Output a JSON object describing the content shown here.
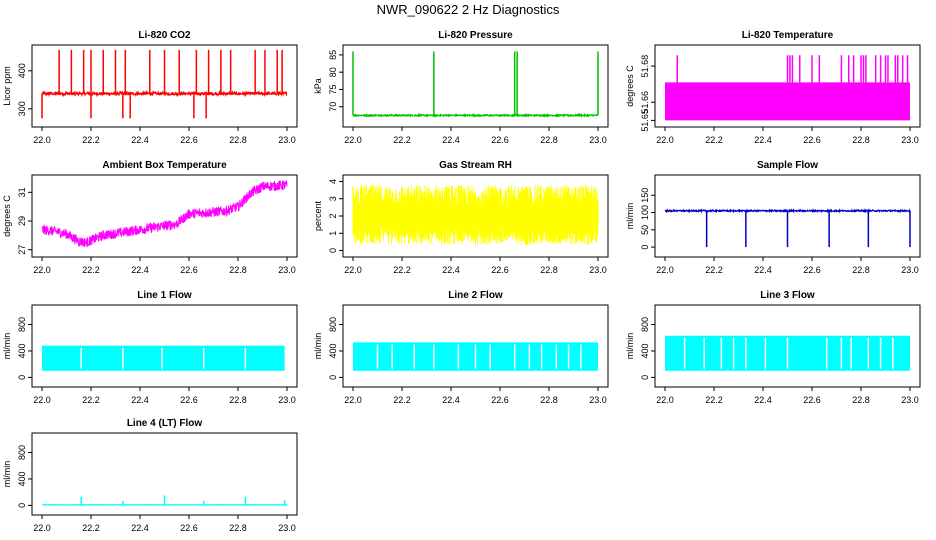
{
  "title": "NWR_090622  2 Hz Diagnostics",
  "chart_data": [
    {
      "type": "line",
      "title": "Li-820 CO2",
      "ylabel": "Licor ppm",
      "color": "#ff0000",
      "xlim": [
        22.0,
        23.0
      ],
      "ylim": [
        260,
        460
      ],
      "yticks": [
        300,
        400
      ],
      "xticks": [
        22.0,
        22.2,
        22.4,
        22.6,
        22.8,
        23.0
      ],
      "baseline": 340,
      "noise": 4,
      "spikes_up": [
        22.07,
        22.12,
        22.17,
        22.2,
        22.25,
        22.3,
        22.34,
        22.44,
        22.5,
        22.56,
        22.63,
        22.68,
        22.73,
        22.77,
        22.87,
        22.91,
        22.96,
        22.98
      ],
      "spike_up_value": 455,
      "spikes_down": [
        22.0,
        22.2,
        22.33,
        22.36,
        22.62,
        22.67
      ],
      "spike_down_value": 275
    },
    {
      "type": "line",
      "title": "Li-820 Pressure",
      "ylabel": "kPa",
      "color": "#00c000",
      "xlim": [
        22.0,
        23.0
      ],
      "ylim": [
        65,
        87
      ],
      "yticks": [
        70,
        75,
        80,
        85
      ],
      "xticks": [
        22.0,
        22.2,
        22.4,
        22.6,
        22.8,
        23.0
      ],
      "baseline": 67.5,
      "noise": 0.2,
      "spikes_up": [
        22.0,
        22.33,
        22.66,
        22.67,
        23.0
      ],
      "spike_up_value": 86,
      "spikes_down": [],
      "spike_down_value": 67
    },
    {
      "type": "area",
      "title": "Li-820 Temperature",
      "ylabel": "degrees C",
      "color": "#ff00ff",
      "xlim": [
        22.0,
        23.0
      ],
      "ylim": [
        51.648,
        51.69
      ],
      "yticks": [
        51.65,
        51.66,
        51.68
      ],
      "ytick_labels": [
        "51.65",
        "51.66",
        "51.68"
      ],
      "xticks": [
        22.0,
        22.2,
        22.4,
        22.6,
        22.8,
        23.0
      ],
      "band": [
        51.65,
        51.671
      ],
      "spikes_up": [
        22.05,
        22.5,
        22.51,
        22.52,
        22.55,
        22.6,
        22.63,
        22.72,
        22.75,
        22.77,
        22.8,
        22.81,
        22.82,
        22.86,
        22.88,
        22.9,
        22.91,
        22.94,
        22.95,
        22.97,
        22.99
      ],
      "spike_up_value": 51.686
    },
    {
      "type": "line",
      "title": "Ambient Box Temperature",
      "ylabel": "degrees C",
      "color": "#ff00ff",
      "xlim": [
        22.0,
        23.0
      ],
      "ylim": [
        26.7,
        32.0
      ],
      "yticks": [
        27,
        29,
        31
      ],
      "xticks": [
        22.0,
        22.2,
        22.4,
        22.6,
        22.8,
        23.0
      ],
      "trend": [
        [
          22.0,
          28.4
        ],
        [
          22.05,
          28.3
        ],
        [
          22.1,
          28.1
        ],
        [
          22.15,
          27.6
        ],
        [
          22.18,
          27.5
        ],
        [
          22.25,
          28.0
        ],
        [
          22.4,
          28.4
        ],
        [
          22.55,
          28.8
        ],
        [
          22.6,
          29.5
        ],
        [
          22.75,
          29.7
        ],
        [
          22.8,
          30.0
        ],
        [
          22.85,
          30.9
        ],
        [
          22.9,
          31.4
        ],
        [
          23.0,
          31.5
        ]
      ],
      "noise": 0.35
    },
    {
      "type": "area",
      "title": "Gas Stream RH",
      "ylabel": "percent",
      "color": "#ffff00",
      "xlim": [
        22.0,
        23.0
      ],
      "ylim": [
        -0.2,
        4.2
      ],
      "yticks": [
        0,
        1,
        2,
        3,
        4
      ],
      "xticks": [
        22.0,
        22.2,
        22.4,
        22.6,
        22.8,
        23.0
      ],
      "band": [
        0.8,
        3.2
      ],
      "jitter": 0.6
    },
    {
      "type": "line",
      "title": "Sample Flow",
      "ylabel": "ml/min",
      "color": "#0000c0",
      "xlim": [
        22.0,
        23.0
      ],
      "ylim": [
        -20,
        200
      ],
      "yticks": [
        0,
        50,
        100,
        150
      ],
      "xticks": [
        22.0,
        22.2,
        22.4,
        22.6,
        22.8,
        23.0
      ],
      "baseline": 105,
      "noise": 2,
      "spikes_down": [
        22.17,
        22.33,
        22.5,
        22.67,
        22.83,
        23.0
      ],
      "spike_down_value": 0
    },
    {
      "type": "area",
      "title": "Line 1 Flow",
      "ylabel": "ml/min",
      "color": "#00ffff",
      "xlim": [
        22.0,
        23.0
      ],
      "ylim": [
        -100,
        1050
      ],
      "yticks": [
        0,
        400,
        800
      ],
      "ytick_labels": [
        "0",
        "400",
        "800"
      ],
      "xticks": [
        22.0,
        22.2,
        22.4,
        22.6,
        22.8,
        23.0
      ],
      "band": [
        100,
        480
      ],
      "gaps": [
        22.16,
        22.33,
        22.49,
        22.66,
        22.83
      ],
      "range": [
        22.0,
        22.99
      ]
    },
    {
      "type": "area",
      "title": "Line 2 Flow",
      "ylabel": "ml/min",
      "color": "#00ffff",
      "xlim": [
        22.0,
        23.0
      ],
      "ylim": [
        -100,
        1050
      ],
      "yticks": [
        0,
        400,
        800
      ],
      "ytick_labels": [
        "0",
        "400",
        "800"
      ],
      "xticks": [
        22.0,
        22.2,
        22.4,
        22.6,
        22.8,
        23.0
      ],
      "band": [
        100,
        530
      ],
      "gaps": [
        22.1,
        22.16,
        22.25,
        22.33,
        22.43,
        22.5,
        22.56,
        22.66,
        22.72,
        22.77,
        22.83,
        22.88,
        22.93
      ],
      "range": [
        22.0,
        23.0
      ]
    },
    {
      "type": "area",
      "title": "Line 3 Flow",
      "ylabel": "ml/min",
      "color": "#00ffff",
      "xlim": [
        22.0,
        23.0
      ],
      "ylim": [
        -100,
        1050
      ],
      "yticks": [
        0,
        400,
        800
      ],
      "ytick_labels": [
        "0",
        "400",
        "800"
      ],
      "xticks": [
        22.0,
        22.2,
        22.4,
        22.6,
        22.8,
        23.0
      ],
      "band": [
        100,
        630
      ],
      "gaps": [
        22.08,
        22.16,
        22.23,
        22.28,
        22.33,
        22.41,
        22.5,
        22.66,
        22.72,
        22.76,
        22.83,
        22.88,
        22.93
      ],
      "range": [
        22.0,
        23.0
      ]
    },
    {
      "type": "line",
      "title": "Line 4 (LT) Flow",
      "ylabel": "ml/min",
      "color": "#00ffff",
      "xlim": [
        22.0,
        23.0
      ],
      "ylim": [
        -100,
        1050
      ],
      "yticks": [
        0,
        400,
        800
      ],
      "ytick_labels": [
        "0",
        "400",
        "800"
      ],
      "xticks": [
        22.0,
        22.2,
        22.4,
        22.6,
        22.8,
        23.0
      ],
      "baseline": 8,
      "noise": 3,
      "spikes_up": [
        22.16,
        22.33,
        22.5,
        22.66,
        22.83,
        22.99
      ],
      "spike_up_values": [
        130,
        70,
        150,
        70,
        130,
        80
      ]
    }
  ]
}
